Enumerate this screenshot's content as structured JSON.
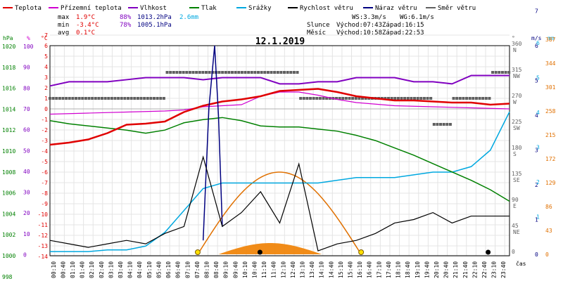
{
  "chart_data": {
    "type": "line",
    "title": "12.1.2019",
    "legend": [
      {
        "name": "Teplota",
        "color": "#e00000"
      },
      {
        "name": "Přízemní teplota",
        "color": "#d000d0"
      },
      {
        "name": "Vlhkost",
        "color": "#8000c0"
      },
      {
        "name": "Tlak",
        "color": "#008000"
      },
      {
        "name": "Srážky",
        "color": "#00a8e0"
      },
      {
        "name": "Rychlost větru",
        "color": "#000000"
      },
      {
        "name": "Náraz větru",
        "color": "#000080"
      },
      {
        "name": "Směr větru",
        "color": "#606060"
      }
    ],
    "stats": {
      "max_label": "max",
      "min_label": "min",
      "avg_label": "avg",
      "max_temp": "1.9°C",
      "max_hum": "88%",
      "max_press": "1013.2hPa",
      "max_rain": "2.6mm",
      "min_temp": "-3.4°C",
      "min_hum": "78%",
      "min_press": "1005.1hPa",
      "avg_temp": "0.1°C"
    },
    "info": {
      "ws": "WS:3.3m/s",
      "wg": "WG:6.1m/s",
      "sun_label": "Slunce",
      "sun_rise": "Východ:07:43",
      "sun_set": "Západ:16:15",
      "moon_label": "Měsíc",
      "moon_rise": "Východ:10:58",
      "moon_set": "Západ:22:53"
    },
    "axes": {
      "hpa_unit": "hPa",
      "hum_unit": "%",
      "temp_unit": "°C",
      "dir_unit": "°",
      "wind_unit": "m/s",
      "rain_unit": "mm",
      "xlabel": "čas",
      "hpa_ticks": [
        "1020",
        "1018",
        "1016",
        "1014",
        "1012",
        "1010",
        "1008",
        "1006",
        "1004",
        "1002",
        "1000",
        "998"
      ],
      "hum_ticks": [
        "100",
        "90",
        "80",
        "70",
        "60",
        "50",
        "40",
        "30",
        "20",
        "10",
        "0"
      ],
      "temp_ticks": [
        "7",
        "6",
        "5",
        "4",
        "3",
        "2",
        "1",
        "0",
        "-1",
        "-2",
        "-3",
        "-4",
        "-5",
        "-6",
        "-7",
        "-8",
        "-9",
        "-10",
        "-11",
        "-12",
        "-13",
        "-14"
      ],
      "dir_ticks": [
        {
          "deg": "360",
          "card": "N"
        },
        {
          "deg": "315",
          "card": "NW"
        },
        {
          "deg": "270",
          "card": "W"
        },
        {
          "deg": "225",
          "card": "SW"
        },
        {
          "deg": "180",
          "card": "S"
        },
        {
          "deg": "135",
          "card": "SE"
        },
        {
          "deg": "90",
          "card": "E"
        },
        {
          "deg": "45",
          "card": "NE"
        },
        {
          "deg": "0",
          "card": ""
        }
      ],
      "wind_ticks": [
        "0",
        "1",
        "2",
        "3",
        "4",
        "5",
        "6",
        "7"
      ],
      "rain_ticks": [
        "0",
        "43",
        "86",
        "129",
        "172",
        "215",
        "258",
        "301",
        "344",
        "387"
      ],
      "wind_ticks_r": [
        "1",
        "2",
        "3",
        "4",
        "5",
        "6"
      ],
      "time_ticks": [
        "00:10",
        "00:40",
        "01:10",
        "01:40",
        "02:10",
        "02:40",
        "03:10",
        "03:40",
        "04:10",
        "04:40",
        "05:10",
        "05:40",
        "06:10",
        "06:40",
        "07:10",
        "07:40",
        "08:10",
        "08:40",
        "09:10",
        "09:40",
        "10:10",
        "10:40",
        "11:10",
        "11:40",
        "12:10",
        "12:40",
        "13:10",
        "13:40",
        "14:10",
        "14:40",
        "15:10",
        "15:40",
        "16:10",
        "16:40",
        "17:10",
        "17:40",
        "18:10",
        "18:40",
        "19:10",
        "19:40",
        "20:10",
        "20:40",
        "21:10",
        "21:40",
        "22:10",
        "22:40",
        "23:10",
        "23:40"
      ]
    },
    "series": [
      {
        "name": "Teplota",
        "unit": "°C",
        "x": [
          0,
          1,
          2,
          3,
          4,
          5,
          6,
          7,
          8,
          9,
          10,
          11,
          12,
          13,
          14,
          15,
          16,
          17,
          18,
          19,
          20,
          21,
          22,
          23,
          24
        ],
        "values": [
          -3.4,
          -3.2,
          -2.9,
          -2.3,
          -1.5,
          -1.4,
          -1.2,
          -0.3,
          0.3,
          0.7,
          0.9,
          1.2,
          1.7,
          1.8,
          1.9,
          1.6,
          1.2,
          1.0,
          0.8,
          0.8,
          0.7,
          0.6,
          0.6,
          0.4,
          0.5
        ]
      },
      {
        "name": "Přízemní teplota",
        "unit": "°C",
        "x": [
          0,
          2,
          4,
          6,
          7,
          8,
          10,
          11,
          12,
          13,
          14,
          15,
          16,
          18,
          20,
          22,
          24
        ],
        "values": [
          -0.5,
          -0.4,
          -0.3,
          -0.2,
          -0.1,
          0.2,
          0.4,
          1.2,
          1.6,
          1.6,
          1.3,
          0.9,
          0.6,
          0.3,
          0.2,
          0.1,
          0.0
        ]
      },
      {
        "name": "Vlhkost",
        "unit": "%",
        "x": [
          0,
          1,
          2,
          3,
          4,
          5,
          6,
          7,
          8,
          9,
          10,
          11,
          12,
          13,
          14,
          15,
          16,
          17,
          18,
          19,
          20,
          21,
          22,
          23,
          24
        ],
        "values": [
          81,
          83,
          83,
          83,
          84,
          85,
          85,
          85,
          84,
          85,
          85,
          85,
          82,
          82,
          83,
          83,
          85,
          85,
          85,
          83,
          83,
          82,
          86,
          86,
          86
        ]
      },
      {
        "name": "Tlak",
        "unit": "hPa",
        "x": [
          0,
          1,
          2,
          3,
          4,
          5,
          6,
          7,
          8,
          9,
          10,
          11,
          12,
          13,
          14,
          15,
          16,
          17,
          18,
          19,
          20,
          21,
          22,
          23,
          24
        ],
        "values": [
          1012.9,
          1012.6,
          1012.4,
          1012.2,
          1012.0,
          1011.7,
          1012.0,
          1012.7,
          1013.0,
          1013.2,
          1012.9,
          1012.4,
          1012.3,
          1012.3,
          1012.1,
          1011.9,
          1011.5,
          1011.0,
          1010.3,
          1009.6,
          1008.8,
          1008.0,
          1007.2,
          1006.3,
          1005.2
        ]
      },
      {
        "name": "Srážky",
        "unit": "mm",
        "x": [
          0,
          1,
          2,
          3,
          4,
          5,
          6,
          7,
          8,
          9,
          10,
          11,
          12,
          13,
          14,
          15,
          16,
          17,
          18,
          19,
          20,
          21,
          22,
          23,
          24
        ],
        "values": [
          0.05,
          0.05,
          0.05,
          0.08,
          0.08,
          0.15,
          0.4,
          0.8,
          1.2,
          1.3,
          1.3,
          1.3,
          1.3,
          1.3,
          1.3,
          1.35,
          1.4,
          1.4,
          1.4,
          1.45,
          1.5,
          1.5,
          1.6,
          1.9,
          2.6
        ]
      },
      {
        "name": "Rychlost větru",
        "unit": "m/s",
        "x": [
          0,
          1,
          2,
          3,
          4,
          5,
          6,
          7,
          8,
          9,
          10,
          11,
          12,
          13,
          14,
          15,
          16,
          17,
          18,
          19,
          20,
          21,
          22,
          23,
          24
        ],
        "values": [
          0.4,
          0.3,
          0.2,
          0.3,
          0.4,
          0.3,
          0.6,
          0.8,
          2.8,
          0.8,
          1.2,
          1.8,
          0.9,
          2.6,
          0.1,
          0.3,
          0.4,
          0.6,
          0.9,
          1.0,
          1.2,
          0.9,
          1.1,
          1.1,
          1.1
        ]
      },
      {
        "name": "Náraz větru",
        "unit": "m/s",
        "x": [
          8,
          8.3,
          8.6,
          8.8,
          9.0
        ],
        "values": [
          0.4,
          4.2,
          6.0,
          4.0,
          0.8
        ]
      },
      {
        "name": "Směr větru",
        "unit": "°",
        "x": [
          0,
          2,
          4,
          6,
          8,
          9,
          10,
          11,
          12,
          13,
          14,
          15,
          16,
          17,
          18,
          19,
          20,
          21,
          22,
          23,
          24
        ],
        "values": [
          270,
          270,
          270,
          315,
          315,
          315,
          315,
          315,
          315,
          270,
          270,
          270,
          270,
          270,
          270,
          270,
          225,
          270,
          270,
          315,
          315
        ]
      }
    ],
    "sun_altitude_peak_hour": 12
  }
}
